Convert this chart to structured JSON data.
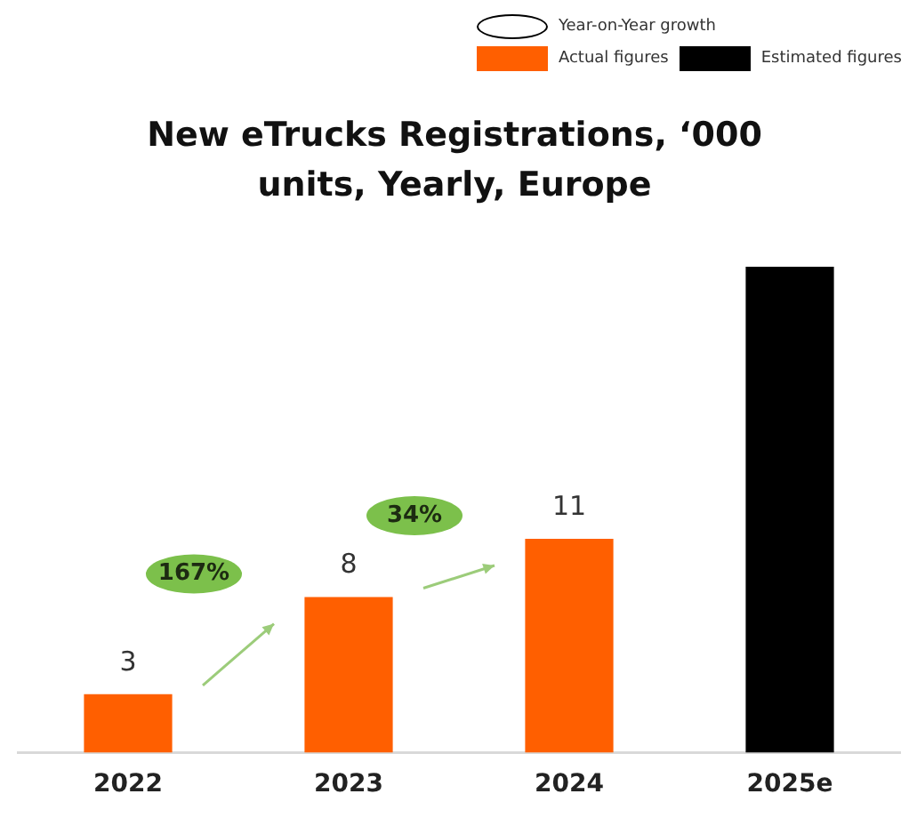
{
  "chart_data": {
    "type": "bar",
    "title": "New eTrucks Registrations, ‘000 units, Yearly, Europe",
    "categories": [
      "2022",
      "2023",
      "2024",
      "2025e"
    ],
    "series": [
      {
        "name": "Actual figures",
        "color": "#ff5f00",
        "values": [
          3,
          8,
          11,
          null
        ],
        "value_labels": [
          "3",
          "8",
          "11",
          null
        ]
      },
      {
        "name": "Estimated figures",
        "color": "#000000",
        "values": [
          null,
          null,
          null,
          25
        ]
      }
    ],
    "annotations": [
      "Year-on-Year growth",
      "167%",
      "34%"
    ],
    "legend": "top right",
    "grid": false
  }
}
